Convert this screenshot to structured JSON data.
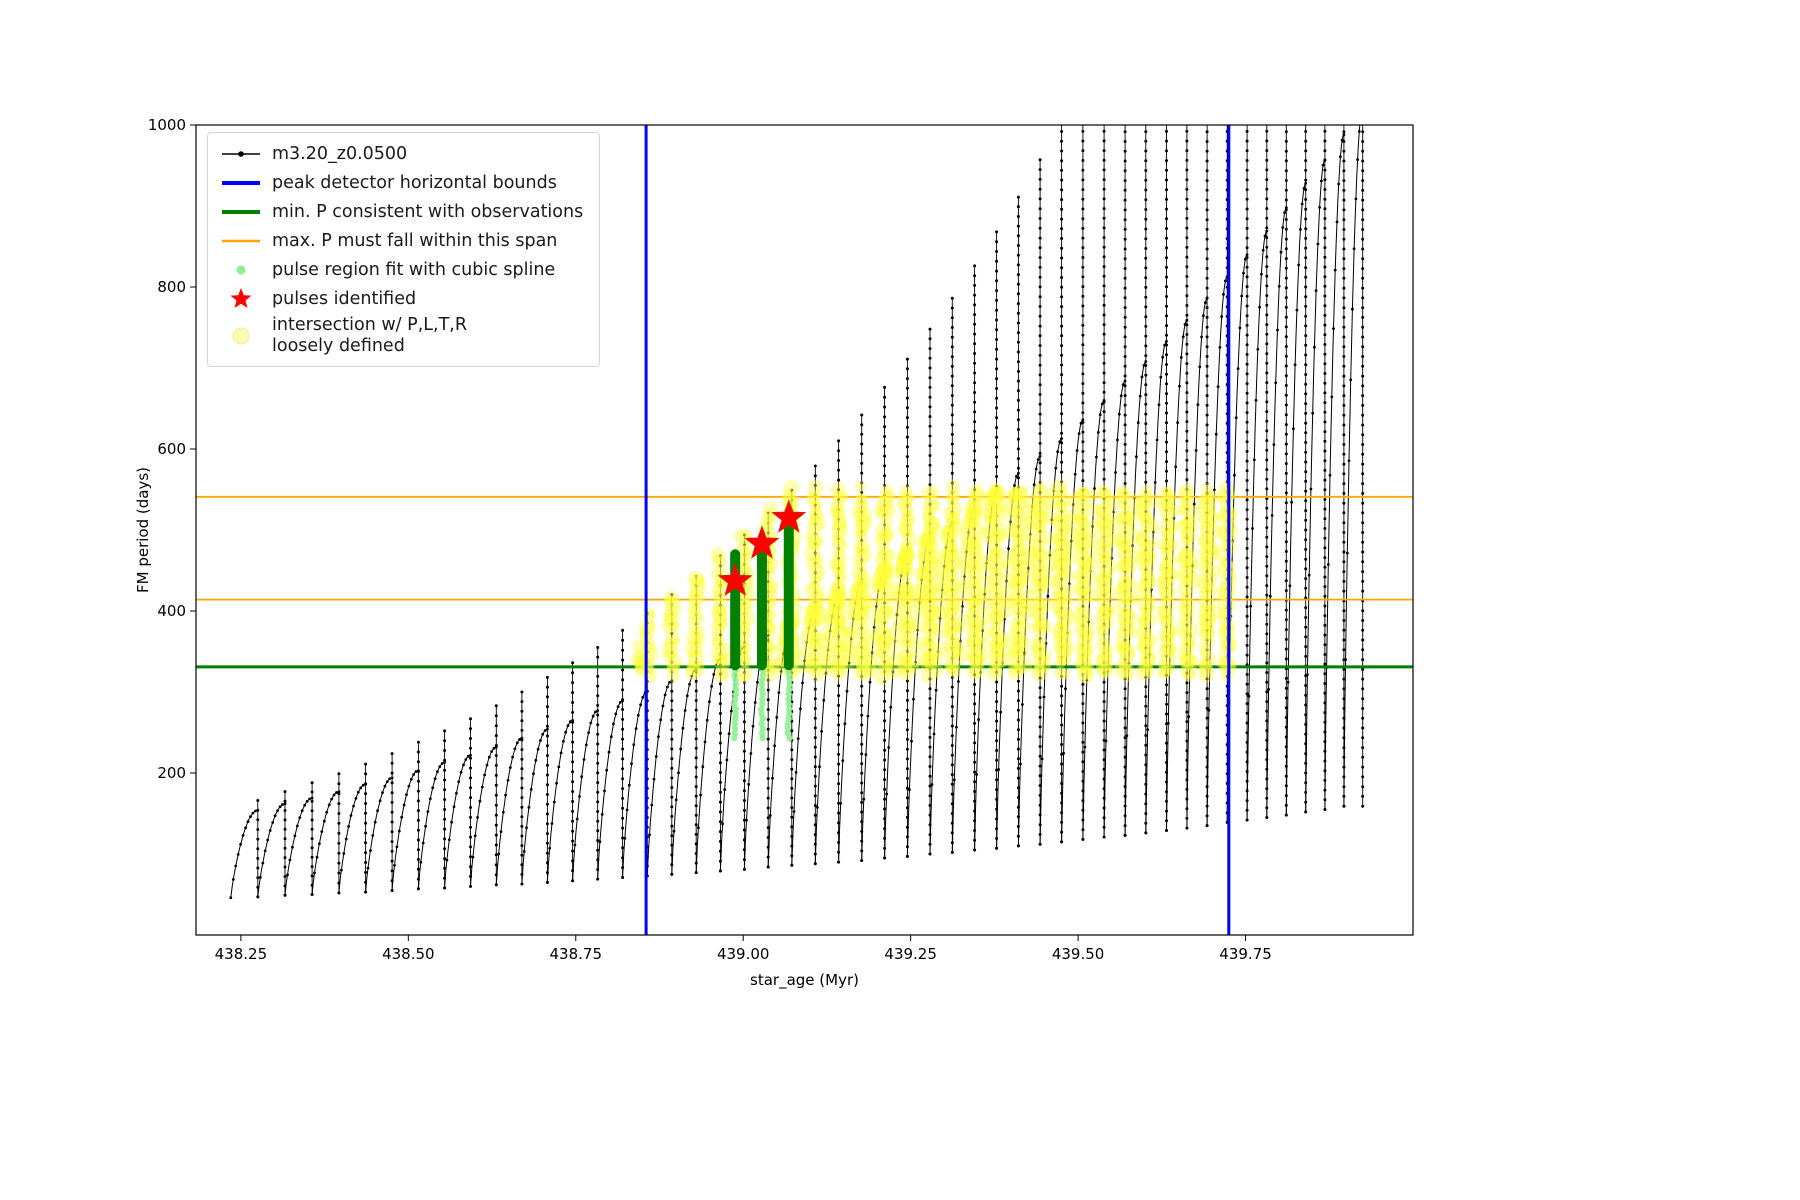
{
  "figure": {
    "background": "#ffffff"
  },
  "chart_data": {
    "type": "line",
    "title": "",
    "series_name": "m3.20_z0.0500",
    "xlabel": "star_age (Myr)",
    "ylabel": "FM period (days)",
    "xlim": [
      438.183,
      440.0
    ],
    "ylim": [
      0,
      1000
    ],
    "grid": false,
    "legend_position": "upper left",
    "xticks": [
      {
        "v": 438.25,
        "label": "438.25"
      },
      {
        "v": 438.5,
        "label": "438.50"
      },
      {
        "v": 438.75,
        "label": "438.75"
      },
      {
        "v": 439.0,
        "label": "439.00"
      },
      {
        "v": 439.25,
        "label": "439.25"
      },
      {
        "v": 439.5,
        "label": "439.50"
      },
      {
        "v": 439.75,
        "label": "439.75"
      }
    ],
    "yticks": [
      {
        "v": 200,
        "label": "200"
      },
      {
        "v": 400,
        "label": "400"
      },
      {
        "v": 600,
        "label": "600"
      },
      {
        "v": 800,
        "label": "800"
      },
      {
        "v": 1000,
        "label": "1000"
      }
    ],
    "legend": [
      {
        "label": "m3.20_z0.0500",
        "marker": "line-with-dot",
        "color": "#000000"
      },
      {
        "label": "peak detector horizontal bounds",
        "marker": "thick-line",
        "color": "#0000ff"
      },
      {
        "label": "min. P consistent with observations",
        "marker": "thick-line",
        "color": "#008000"
      },
      {
        "label": "max. P must fall within this span",
        "marker": "line",
        "color": "#ffa500"
      },
      {
        "label": "pulse region fit with cubic spline",
        "marker": "small-dot",
        "color": "#90ee90"
      },
      {
        "label": "pulses identified",
        "marker": "star",
        "color": "#ff0000"
      },
      {
        "label": "intersection w/ P,L,T,R\nloosely defined",
        "marker": "big-pale-dot",
        "color": "#fbfbb8"
      }
    ],
    "vlines": [
      {
        "x": 438.855,
        "color": "#0000ff",
        "width": 3,
        "meaning": "peak detector horizontal bounds"
      },
      {
        "x": 439.725,
        "color": "#0000ff",
        "width": 3,
        "meaning": "peak detector horizontal bounds"
      }
    ],
    "hlines": [
      {
        "y": 331,
        "color": "#008000",
        "width": 3,
        "meaning": "min. P consistent with observations"
      },
      {
        "y": 414,
        "color": "#ffa500",
        "width": 1.8,
        "meaning": "max. P span lower bound"
      },
      {
        "y": 541,
        "color": "#ffa500",
        "width": 1.8,
        "meaning": "max. P span upper bound"
      }
    ],
    "stars": [
      {
        "x": 438.988,
        "y": 437
      },
      {
        "x": 439.028,
        "y": 483
      },
      {
        "x": 439.068,
        "y": 515
      }
    ],
    "pulse_bars": [
      {
        "x": 438.988,
        "y0": 333,
        "y1": 470
      },
      {
        "x": 439.028,
        "y0": 333,
        "y1": 487
      },
      {
        "x": 439.068,
        "y0": 333,
        "y1": 503
      }
    ],
    "spline_regions": [
      {
        "x": 438.988,
        "y0": 243,
        "y1": 333
      },
      {
        "x": 439.028,
        "y0": 243,
        "y1": 333
      },
      {
        "x": 439.068,
        "y0": 243,
        "y1": 333
      }
    ],
    "yellow": {
      "color": "#ffff3b",
      "x_min": 438.852,
      "x_max": 439.737,
      "y_min": 322,
      "y_max": 549,
      "arc_from": 439.04,
      "extra_clusters": [
        {
          "x": 438.846,
          "y0": 326,
          "y1": 358,
          "n": 8
        }
      ]
    },
    "series_start_x": 438.235,
    "pulses": [
      [
        438.2753,
        46,
        154,
        166
      ],
      [
        438.3159,
        47,
        162,
        177
      ],
      [
        438.3563,
        49,
        169,
        188
      ],
      [
        438.3964,
        50,
        177,
        199
      ],
      [
        438.4362,
        52,
        186,
        211
      ],
      [
        438.4758,
        53,
        194,
        224
      ],
      [
        438.5151,
        55,
        203,
        238
      ],
      [
        438.5541,
        57,
        213,
        252
      ],
      [
        438.5929,
        58,
        222,
        267
      ],
      [
        438.6314,
        60,
        232,
        283
      ],
      [
        438.6696,
        62,
        243,
        300
      ],
      [
        438.7076,
        63,
        254,
        318
      ],
      [
        438.7453,
        65,
        265,
        336
      ],
      [
        438.7827,
        67,
        277,
        355
      ],
      [
        438.8199,
        69,
        289,
        376
      ],
      [
        438.8568,
        71,
        301,
        397
      ],
      [
        438.8934,
        73,
        314,
        420
      ],
      [
        438.9298,
        75,
        328,
        443
      ],
      [
        438.9659,
        77,
        341,
        468
      ],
      [
        439.0017,
        79,
        356,
        494
      ],
      [
        439.0373,
        81,
        370,
        521
      ],
      [
        439.0726,
        84,
        386,
        549
      ],
      [
        439.1076,
        86,
        402,
        579
      ],
      [
        439.1424,
        88,
        418,
        610
      ],
      [
        439.1769,
        90,
        435,
        642
      ],
      [
        439.2111,
        92,
        452,
        676
      ],
      [
        439.2451,
        95,
        471,
        711
      ],
      [
        439.2788,
        97,
        489,
        748
      ],
      [
        439.3122,
        100,
        508,
        786
      ],
      [
        439.3454,
        102,
        528,
        826
      ],
      [
        439.3783,
        105,
        548,
        868
      ],
      [
        439.4109,
        107,
        570,
        911
      ],
      [
        439.4433,
        110,
        591,
        957
      ],
      [
        439.4754,
        112,
        613,
        1004
      ],
      [
        439.5072,
        115,
        636,
        1040
      ],
      [
        439.5388,
        118,
        660,
        1040
      ],
      [
        439.5701,
        121,
        684,
        1040
      ],
      [
        439.6011,
        123,
        708,
        1040
      ],
      [
        439.6319,
        126,
        733,
        1040
      ],
      [
        439.6624,
        129,
        759,
        1040
      ],
      [
        439.6926,
        132,
        786,
        1040
      ],
      [
        439.7226,
        135,
        813,
        1040
      ],
      [
        439.7523,
        139,
        840,
        1040
      ],
      [
        439.7817,
        142,
        869,
        1040
      ],
      [
        439.8109,
        145,
        898,
        1040
      ],
      [
        439.8398,
        148,
        928,
        1040
      ],
      [
        439.8684,
        152,
        957,
        1040
      ],
      [
        439.8968,
        155,
        988,
        1040
      ],
      [
        439.9249,
        159,
        1020,
        1040
      ]
    ]
  }
}
